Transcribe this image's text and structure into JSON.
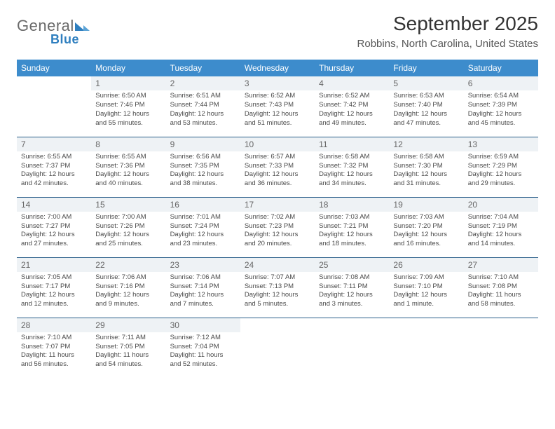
{
  "logo": {
    "text_a": "General",
    "text_b": "Blue"
  },
  "title": "September 2025",
  "subtitle": "Robbins, North Carolina, United States",
  "colors": {
    "header_bg": "#3d8ccc",
    "header_text": "#ffffff",
    "row_border": "#2a5f8a",
    "daynum_bg": "#eef2f5",
    "daynum_text": "#666666",
    "body_text": "#4a4a4a",
    "logo_gray": "#6a6a6a",
    "logo_blue": "#2f7fbf"
  },
  "typography": {
    "title_fontsize": 28,
    "subtitle_fontsize": 15,
    "header_fontsize": 12,
    "cell_fontsize": 9.5,
    "daynum_fontsize": 12
  },
  "days": [
    "Sunday",
    "Monday",
    "Tuesday",
    "Wednesday",
    "Thursday",
    "Friday",
    "Saturday"
  ],
  "weeks": [
    [
      {
        "n": "",
        "sr": "",
        "ss": "",
        "dl": ""
      },
      {
        "n": "1",
        "sr": "Sunrise: 6:50 AM",
        "ss": "Sunset: 7:46 PM",
        "dl": "Daylight: 12 hours and 55 minutes."
      },
      {
        "n": "2",
        "sr": "Sunrise: 6:51 AM",
        "ss": "Sunset: 7:44 PM",
        "dl": "Daylight: 12 hours and 53 minutes."
      },
      {
        "n": "3",
        "sr": "Sunrise: 6:52 AM",
        "ss": "Sunset: 7:43 PM",
        "dl": "Daylight: 12 hours and 51 minutes."
      },
      {
        "n": "4",
        "sr": "Sunrise: 6:52 AM",
        "ss": "Sunset: 7:42 PM",
        "dl": "Daylight: 12 hours and 49 minutes."
      },
      {
        "n": "5",
        "sr": "Sunrise: 6:53 AM",
        "ss": "Sunset: 7:40 PM",
        "dl": "Daylight: 12 hours and 47 minutes."
      },
      {
        "n": "6",
        "sr": "Sunrise: 6:54 AM",
        "ss": "Sunset: 7:39 PM",
        "dl": "Daylight: 12 hours and 45 minutes."
      }
    ],
    [
      {
        "n": "7",
        "sr": "Sunrise: 6:55 AM",
        "ss": "Sunset: 7:37 PM",
        "dl": "Daylight: 12 hours and 42 minutes."
      },
      {
        "n": "8",
        "sr": "Sunrise: 6:55 AM",
        "ss": "Sunset: 7:36 PM",
        "dl": "Daylight: 12 hours and 40 minutes."
      },
      {
        "n": "9",
        "sr": "Sunrise: 6:56 AM",
        "ss": "Sunset: 7:35 PM",
        "dl": "Daylight: 12 hours and 38 minutes."
      },
      {
        "n": "10",
        "sr": "Sunrise: 6:57 AM",
        "ss": "Sunset: 7:33 PM",
        "dl": "Daylight: 12 hours and 36 minutes."
      },
      {
        "n": "11",
        "sr": "Sunrise: 6:58 AM",
        "ss": "Sunset: 7:32 PM",
        "dl": "Daylight: 12 hours and 34 minutes."
      },
      {
        "n": "12",
        "sr": "Sunrise: 6:58 AM",
        "ss": "Sunset: 7:30 PM",
        "dl": "Daylight: 12 hours and 31 minutes."
      },
      {
        "n": "13",
        "sr": "Sunrise: 6:59 AM",
        "ss": "Sunset: 7:29 PM",
        "dl": "Daylight: 12 hours and 29 minutes."
      }
    ],
    [
      {
        "n": "14",
        "sr": "Sunrise: 7:00 AM",
        "ss": "Sunset: 7:27 PM",
        "dl": "Daylight: 12 hours and 27 minutes."
      },
      {
        "n": "15",
        "sr": "Sunrise: 7:00 AM",
        "ss": "Sunset: 7:26 PM",
        "dl": "Daylight: 12 hours and 25 minutes."
      },
      {
        "n": "16",
        "sr": "Sunrise: 7:01 AM",
        "ss": "Sunset: 7:24 PM",
        "dl": "Daylight: 12 hours and 23 minutes."
      },
      {
        "n": "17",
        "sr": "Sunrise: 7:02 AM",
        "ss": "Sunset: 7:23 PM",
        "dl": "Daylight: 12 hours and 20 minutes."
      },
      {
        "n": "18",
        "sr": "Sunrise: 7:03 AM",
        "ss": "Sunset: 7:21 PM",
        "dl": "Daylight: 12 hours and 18 minutes."
      },
      {
        "n": "19",
        "sr": "Sunrise: 7:03 AM",
        "ss": "Sunset: 7:20 PM",
        "dl": "Daylight: 12 hours and 16 minutes."
      },
      {
        "n": "20",
        "sr": "Sunrise: 7:04 AM",
        "ss": "Sunset: 7:19 PM",
        "dl": "Daylight: 12 hours and 14 minutes."
      }
    ],
    [
      {
        "n": "21",
        "sr": "Sunrise: 7:05 AM",
        "ss": "Sunset: 7:17 PM",
        "dl": "Daylight: 12 hours and 12 minutes."
      },
      {
        "n": "22",
        "sr": "Sunrise: 7:06 AM",
        "ss": "Sunset: 7:16 PM",
        "dl": "Daylight: 12 hours and 9 minutes."
      },
      {
        "n": "23",
        "sr": "Sunrise: 7:06 AM",
        "ss": "Sunset: 7:14 PM",
        "dl": "Daylight: 12 hours and 7 minutes."
      },
      {
        "n": "24",
        "sr": "Sunrise: 7:07 AM",
        "ss": "Sunset: 7:13 PM",
        "dl": "Daylight: 12 hours and 5 minutes."
      },
      {
        "n": "25",
        "sr": "Sunrise: 7:08 AM",
        "ss": "Sunset: 7:11 PM",
        "dl": "Daylight: 12 hours and 3 minutes."
      },
      {
        "n": "26",
        "sr": "Sunrise: 7:09 AM",
        "ss": "Sunset: 7:10 PM",
        "dl": "Daylight: 12 hours and 1 minute."
      },
      {
        "n": "27",
        "sr": "Sunrise: 7:10 AM",
        "ss": "Sunset: 7:08 PM",
        "dl": "Daylight: 11 hours and 58 minutes."
      }
    ],
    [
      {
        "n": "28",
        "sr": "Sunrise: 7:10 AM",
        "ss": "Sunset: 7:07 PM",
        "dl": "Daylight: 11 hours and 56 minutes."
      },
      {
        "n": "29",
        "sr": "Sunrise: 7:11 AM",
        "ss": "Sunset: 7:05 PM",
        "dl": "Daylight: 11 hours and 54 minutes."
      },
      {
        "n": "30",
        "sr": "Sunrise: 7:12 AM",
        "ss": "Sunset: 7:04 PM",
        "dl": "Daylight: 11 hours and 52 minutes."
      },
      {
        "n": "",
        "sr": "",
        "ss": "",
        "dl": ""
      },
      {
        "n": "",
        "sr": "",
        "ss": "",
        "dl": ""
      },
      {
        "n": "",
        "sr": "",
        "ss": "",
        "dl": ""
      },
      {
        "n": "",
        "sr": "",
        "ss": "",
        "dl": ""
      }
    ]
  ]
}
